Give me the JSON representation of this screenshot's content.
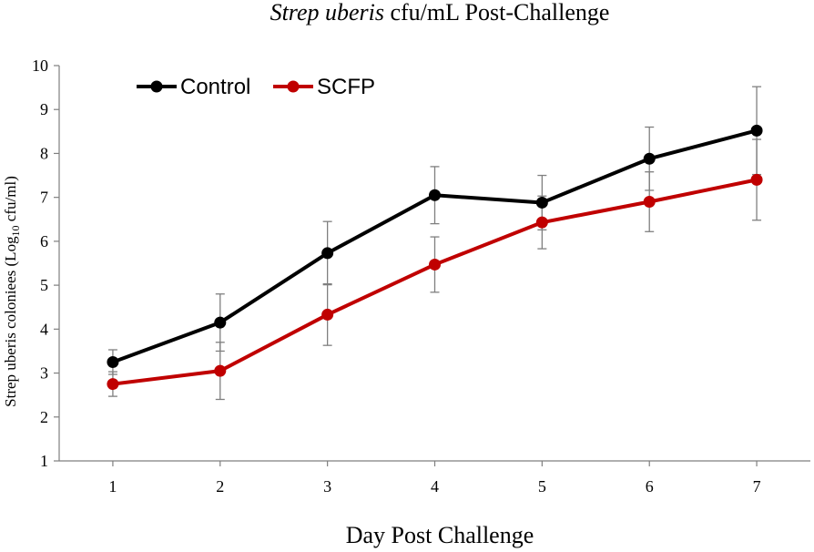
{
  "chart_data": {
    "type": "line",
    "title": {
      "italic": "Strep uberis",
      "rest": "cfu/mL Post-Challenge"
    },
    "xlabel": "Day Post Challenge",
    "ylabel": {
      "prefix": "Strep uberis coloniees (Log",
      "subscript": "10",
      "suffix": " cfu/ml)"
    },
    "x": [
      1,
      2,
      3,
      4,
      5,
      6,
      7
    ],
    "xlim": [
      0.5,
      7.5
    ],
    "ylim": [
      1,
      10
    ],
    "yticks": [
      1,
      2,
      3,
      4,
      5,
      6,
      7,
      8,
      9,
      10
    ],
    "grid": false,
    "legend_position": "top-left",
    "series": [
      {
        "name": "Control",
        "color": "#000000",
        "values": [
          3.25,
          4.15,
          5.73,
          7.05,
          6.88,
          7.88,
          8.52
        ],
        "error": [
          0.28,
          0.65,
          0.72,
          0.65,
          0.62,
          0.72,
          1.0
        ]
      },
      {
        "name": "SCFP",
        "color": "#c00000",
        "values": [
          2.75,
          3.05,
          4.33,
          5.47,
          6.43,
          6.9,
          7.4
        ],
        "error": [
          0.28,
          0.65,
          0.7,
          0.63,
          0.6,
          0.68,
          0.92
        ]
      }
    ]
  }
}
